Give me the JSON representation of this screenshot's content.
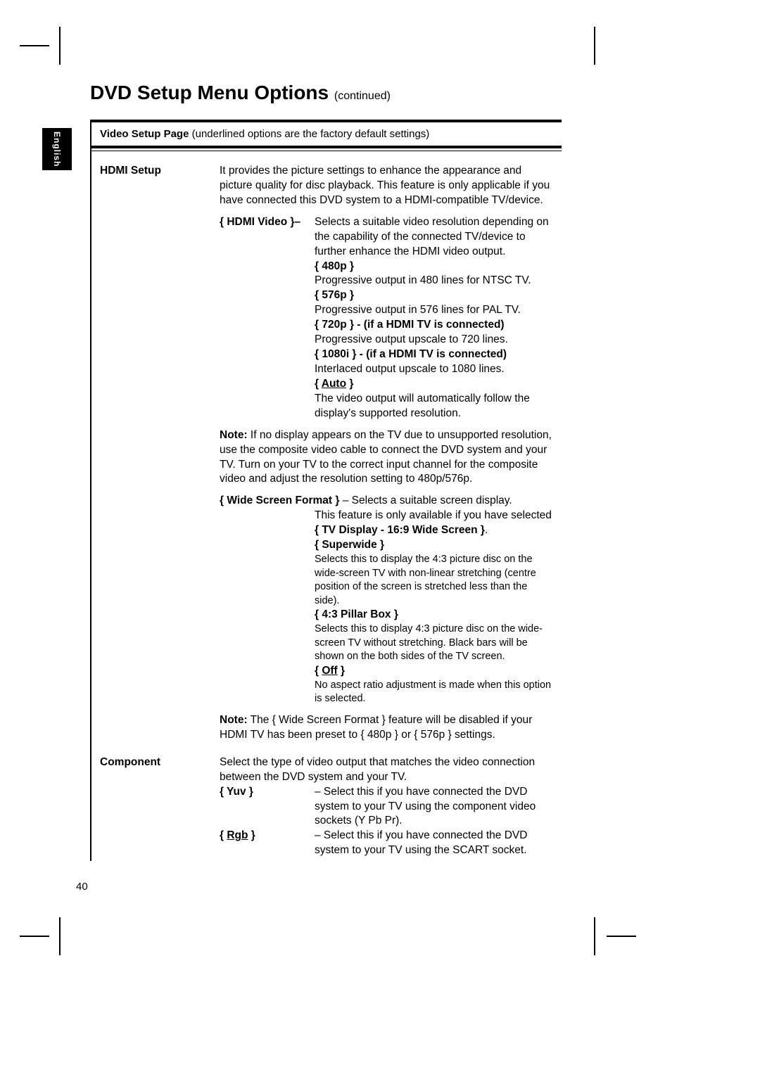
{
  "page": {
    "title": "DVD Setup Menu Options",
    "continued": "(continued)",
    "language_tab": "English",
    "page_number": "40"
  },
  "section": {
    "title": "Video Setup Page",
    "note": "(underlined options are the factory default settings)"
  },
  "hdmi": {
    "label": "HDMI Setup",
    "intro": "It provides the picture settings to enhance the appearance and picture quality for disc playback.  This feature is only applicable if you have connected this DVD system to a HDMI-compatible TV/device.",
    "video_label": "{ HDMI Video }–",
    "video_intro": "Selects a suitable video resolution depending on the capability of the connected TV/device to further enhance the HDMI video output.",
    "opt_480p": "{ 480p }",
    "opt_480p_desc": "Progressive output in 480 lines for NTSC TV.",
    "opt_576p": "{ 576p }",
    "opt_576p_desc": "Progressive output in 576 lines for PAL TV.",
    "opt_720p": "{ 720p } - (if a HDMI TV is connected)",
    "opt_720p_desc": "Progressive output upscale to 720 lines.",
    "opt_1080i": "{ 1080i } - (if a HDMI TV is connected)",
    "opt_1080i_desc": "Interlaced output upscale to 1080 lines.",
    "opt_auto_pre": "{ ",
    "opt_auto": "Auto",
    "opt_auto_post": " }",
    "opt_auto_desc": "The video output will automatically follow the display's supported resolution.",
    "note_label": "Note:",
    "note_text": "If no display appears on the TV due to unsupported resolution, use the composite video cable to connect the DVD system and your TV. Turn on your TV to the correct input channel for the composite video and adjust the resolution setting to 480p/576p.",
    "wsf_label": "{ Wide Screen Format }",
    "wsf_intro1": "– Selects a suitable screen display.",
    "wsf_intro2a": "This feature is only available if you have selected ",
    "wsf_intro2b": "{ TV Display - 16:9 Wide Screen }",
    "wsf_intro2c": ".",
    "opt_superwide": "{ Superwide }",
    "opt_superwide_desc": "Selects this to display the 4:3 picture disc on the wide-screen TV with non-linear stretching (centre position of the screen is stretched less than the side).",
    "opt_pillar": "{ 4:3 Pillar Box }",
    "opt_pillar_desc": "Selects this to display 4:3 picture disc on the wide-screen TV without stretching.  Black bars will be shown on the both sides of the TV screen.",
    "opt_off_pre": "{ ",
    "opt_off": "Off",
    "opt_off_post": " }",
    "opt_off_desc": "No aspect ratio adjustment is made when this option is selected.",
    "note2_label": "Note:",
    "note2_text": "The { Wide Screen Format } feature will be disabled if your HDMI TV has been preset to { 480p } or { 576p } settings."
  },
  "component": {
    "label": "Component",
    "intro": "Select the type of video output that matches the video connection between the DVD system and your TV.",
    "opt_yuv": "{ Yuv }",
    "opt_yuv_desc": "–  Select this if you have connected the DVD system to your TV using the component video sockets (Y Pb Pr).",
    "opt_rgb_pre": "{ ",
    "opt_rgb": "Rgb",
    "opt_rgb_post": " }",
    "opt_rgb_desc": "–  Select this if you have connected the DVD system to your TV using the SCART socket."
  }
}
